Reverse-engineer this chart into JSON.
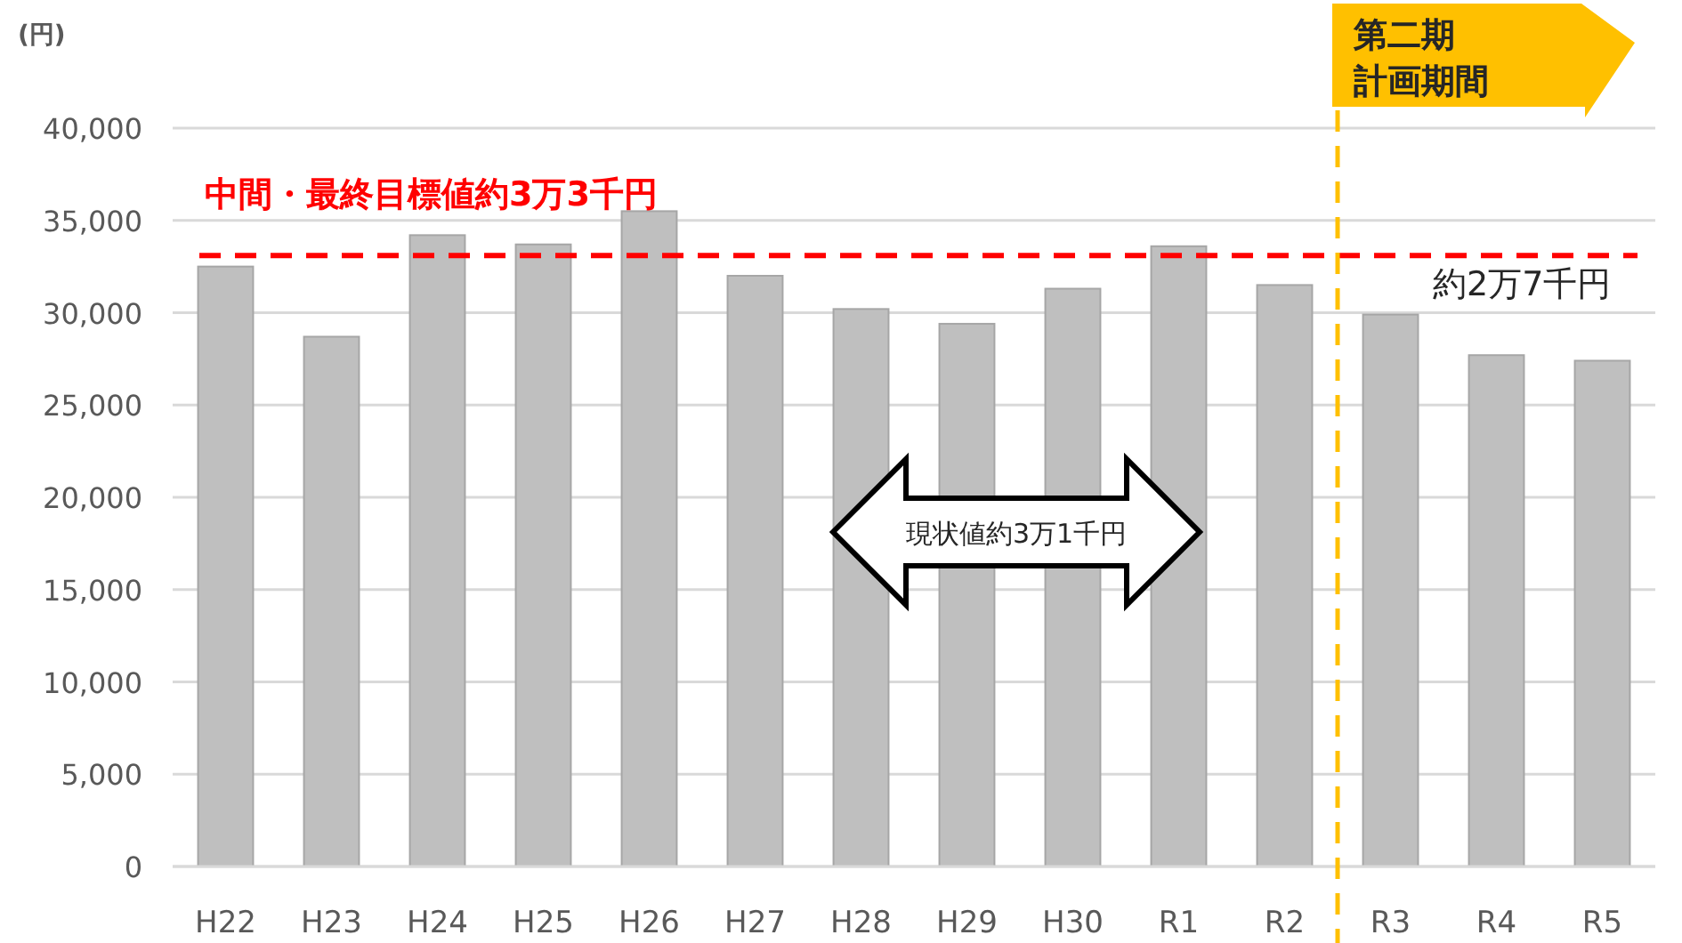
{
  "chart_data": {
    "type": "bar",
    "ylabel": "(円)",
    "categories": [
      "H22",
      "H23",
      "H24",
      "H25",
      "H26",
      "H27",
      "H28",
      "H29",
      "H30",
      "R1",
      "R2",
      "R3",
      "R4",
      "R5"
    ],
    "values": [
      32500,
      28700,
      34200,
      33700,
      35500,
      32000,
      30200,
      29400,
      31300,
      33600,
      31500,
      29900,
      27700,
      27400
    ],
    "color": "#bfbfbf",
    "ylim": [
      0,
      40000
    ],
    "yticks": [
      {
        "value": 0,
        "label": "0"
      },
      {
        "value": 5000,
        "label": "5,000"
      },
      {
        "value": 10000,
        "label": "10,000"
      },
      {
        "value": 15000,
        "label": "15,000"
      },
      {
        "value": 20000,
        "label": "20,000"
      },
      {
        "value": 25000,
        "label": "25,000"
      },
      {
        "value": 30000,
        "label": "30,000"
      },
      {
        "value": 35000,
        "label": "35,000"
      },
      {
        "value": 40000,
        "label": "40,000"
      }
    ],
    "grid": "y",
    "ref_lines": [
      {
        "axis": "y",
        "value": 33100,
        "label": "中間・最終目標値約3万3千円",
        "color": "#ff0000",
        "line_style": "dashed"
      },
      {
        "axis": "x",
        "value": "R3",
        "color": "#ffc000",
        "line_style": "dashed"
      }
    ],
    "annotations": [
      "約2万7千円",
      "現状値約3万1千円",
      "第二期",
      "計画期間"
    ]
  }
}
